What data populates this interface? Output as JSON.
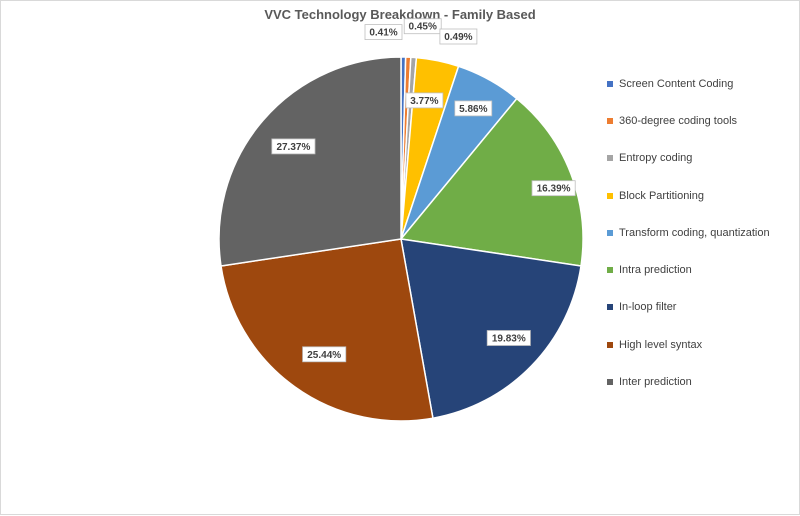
{
  "chart_data": {
    "type": "pie",
    "title": "VVC Technology Breakdown - Family Based",
    "legend_position": "right",
    "slices": [
      {
        "name": "Screen Content Coding",
        "value": 0.41,
        "label": "0.41%",
        "color": "#4472c4"
      },
      {
        "name": "360-degree coding tools",
        "value": 0.45,
        "label": "0.45%",
        "color": "#ed7d31"
      },
      {
        "name": "Entropy coding",
        "value": 0.49,
        "label": "0.49%",
        "color": "#a5a5a5"
      },
      {
        "name": "Block Partitioning",
        "value": 3.77,
        "label": "3.77%",
        "color": "#ffc000"
      },
      {
        "name": "Transform coding, quantization",
        "value": 5.86,
        "label": "5.86%",
        "color": "#5b9bd5"
      },
      {
        "name": "Intra prediction",
        "value": 16.39,
        "label": "16.39%",
        "color": "#70ad47"
      },
      {
        "name": "In-loop filter",
        "value": 19.83,
        "label": "19.83%",
        "color": "#264478"
      },
      {
        "name": "High level syntax",
        "value": 25.44,
        "label": "25.44%",
        "color": "#9e480e"
      },
      {
        "name": "Inter prediction",
        "value": 27.37,
        "label": "27.37%",
        "color": "#636363"
      }
    ]
  }
}
